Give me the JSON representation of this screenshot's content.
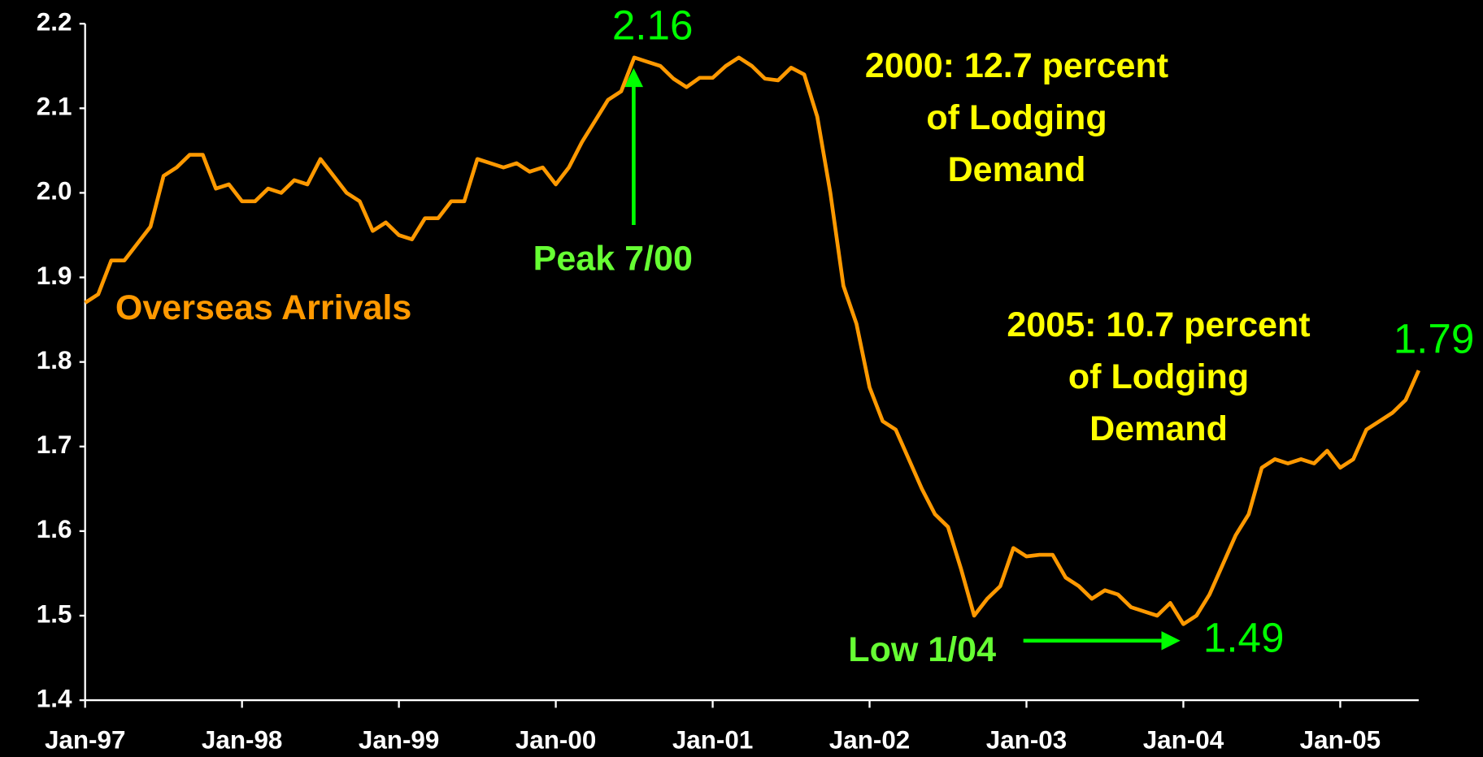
{
  "chart_data": {
    "type": "line",
    "categories": [
      "Jan-97",
      null,
      null,
      null,
      null,
      null,
      null,
      null,
      null,
      null,
      null,
      null,
      "Jan-98",
      null,
      null,
      null,
      null,
      null,
      null,
      null,
      null,
      null,
      null,
      null,
      "Jan-99",
      null,
      null,
      null,
      null,
      null,
      null,
      null,
      null,
      null,
      null,
      null,
      "Jan-00",
      null,
      null,
      null,
      null,
      null,
      null,
      null,
      null,
      null,
      null,
      null,
      "Jan-01",
      null,
      null,
      null,
      null,
      null,
      null,
      null,
      null,
      null,
      null,
      null,
      "Jan-02",
      null,
      null,
      null,
      null,
      null,
      null,
      null,
      null,
      null,
      null,
      null,
      "Jan-03",
      null,
      null,
      null,
      null,
      null,
      null,
      null,
      null,
      null,
      null,
      null,
      "Jan-04",
      null,
      null,
      null,
      null,
      null,
      null,
      null,
      null,
      null,
      null,
      null,
      "Jan-05",
      null,
      null,
      null,
      null,
      null,
      null
    ],
    "series": [
      {
        "name": "Overseas Arrivals",
        "color": "#ff9900",
        "values": [
          1.87,
          1.88,
          1.92,
          1.92,
          1.94,
          1.96,
          2.02,
          2.03,
          2.045,
          2.045,
          2.005,
          2.01,
          1.99,
          1.99,
          2.005,
          2.0,
          2.015,
          2.01,
          2.04,
          2.02,
          2.0,
          1.99,
          1.955,
          1.965,
          1.95,
          1.945,
          1.97,
          1.97,
          1.99,
          1.99,
          2.04,
          2.035,
          2.03,
          2.035,
          2.025,
          2.03,
          2.01,
          2.03,
          2.06,
          2.085,
          2.11,
          2.12,
          2.16,
          2.155,
          2.15,
          2.135,
          2.125,
          2.136,
          2.136,
          2.15,
          2.16,
          2.15,
          2.135,
          2.133,
          2.148,
          2.14,
          2.09,
          2.0,
          1.89,
          1.845,
          1.77,
          1.73,
          1.72,
          1.685,
          1.65,
          1.62,
          1.605,
          1.555,
          1.5,
          1.52,
          1.535,
          1.58,
          1.57,
          1.572,
          1.572,
          1.545,
          1.535,
          1.52,
          1.53,
          1.525,
          1.51,
          1.505,
          1.5,
          1.515,
          1.49,
          1.5,
          1.525,
          1.56,
          1.595,
          1.62,
          1.675,
          1.685,
          1.68,
          1.685,
          1.68,
          1.695,
          1.675,
          1.685,
          1.72,
          1.73,
          1.74,
          1.755,
          1.79
        ]
      }
    ],
    "ylim": [
      1.4,
      2.2
    ],
    "yticks": [
      1.4,
      1.5,
      1.6,
      1.7,
      1.8,
      1.9,
      {
        "value": 2,
        "label": "2.0"
      },
      2.1,
      2.2
    ],
    "value_label_color": "#00ff00",
    "annotations": [
      {
        "text": "Peak 7/00",
        "color": "#66ff33"
      },
      {
        "text": "Low 1/04",
        "color": "#66ff33"
      },
      {
        "lines": [
          "2000: 12.7 percent",
          "of Lodging",
          "Demand"
        ],
        "color": "#ffff00"
      },
      {
        "lines": [
          "2005: 10.7 percent",
          "of Lodging",
          "Demand"
        ],
        "color": "#ffff00"
      }
    ]
  }
}
